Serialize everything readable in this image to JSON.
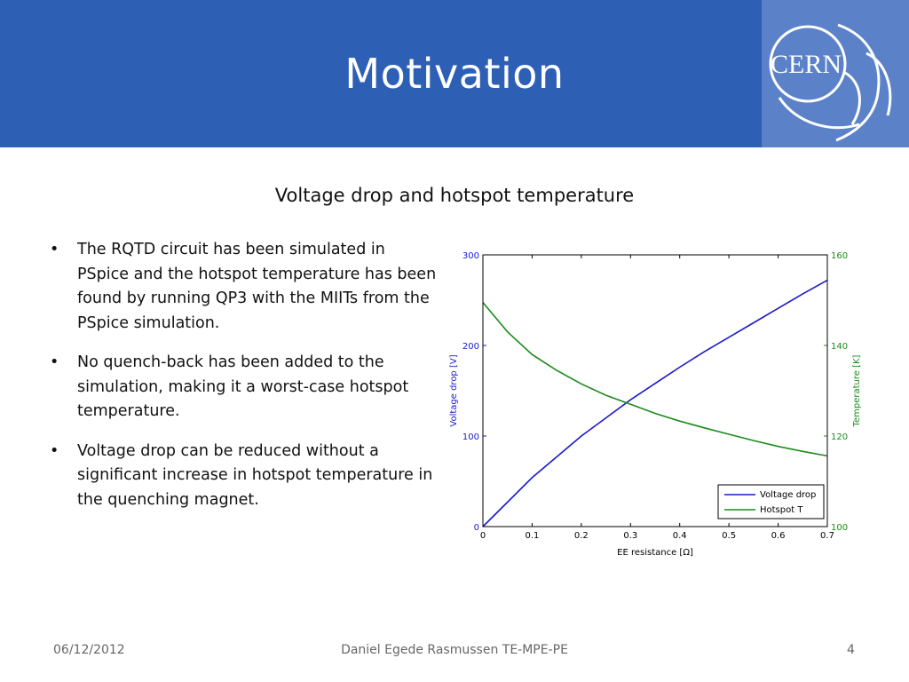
{
  "slide": {
    "title": "Motivation",
    "subtitle": "Voltage drop and hotspot temperature",
    "logo_text": "CERN",
    "bullets": [
      "The RQTD circuit has been simulated in PSpice and the hotspot temperature has been found by running QP3 with the MIITs from the PSpice simulation.",
      "No quench-back has been added to the simulation, making it a worst-case hotspot temperature.",
      "Voltage drop can be reduced without a significant increase in hotspot temperature in the quenching magnet."
    ],
    "footer": {
      "date": "06/12/2012",
      "author": "Daniel Egede Rasmussen TE-MPE-PE",
      "page": "4"
    }
  },
  "colors": {
    "header_bg": "#2d5fb5",
    "voltage_series": "#1a1acc",
    "temperature_series": "#1a8c1a"
  },
  "chart_data": {
    "type": "line",
    "xlabel": "EE resistance [Ω]",
    "ylabel_left": "Voltage drop [V]",
    "ylabel_right": "Temperature [K]",
    "xlim": [
      0,
      0.7
    ],
    "ylim_left": [
      0,
      300
    ],
    "ylim_right": [
      100,
      160
    ],
    "x_ticks": [
      "0",
      "0.1",
      "0.2",
      "0.3",
      "0.4",
      "0.5",
      "0.6",
      "0.7"
    ],
    "y_ticks_left": [
      "0",
      "100",
      "200",
      "300"
    ],
    "y_ticks_right": [
      "100",
      "120",
      "140",
      "160"
    ],
    "legend_position": "bottom-right",
    "grid": false,
    "series": [
      {
        "name": "Voltage drop",
        "axis": "left",
        "x": [
          0,
          0.05,
          0.1,
          0.15,
          0.2,
          0.25,
          0.3,
          0.35,
          0.4,
          0.45,
          0.5,
          0.55,
          0.6,
          0.65,
          0.7
        ],
        "y": [
          0,
          27,
          54,
          77,
          100,
          120,
          140,
          158,
          176,
          193,
          209,
          225,
          241,
          257,
          272
        ]
      },
      {
        "name": "Hotspot T",
        "axis": "right",
        "x": [
          0,
          0.05,
          0.1,
          0.15,
          0.2,
          0.25,
          0.3,
          0.35,
          0.4,
          0.45,
          0.5,
          0.55,
          0.6,
          0.65,
          0.7
        ],
        "y": [
          149.5,
          143,
          138,
          134.5,
          131.5,
          129,
          127,
          125,
          123.3,
          121.8,
          120.4,
          119,
          117.7,
          116.6,
          115.6
        ]
      }
    ]
  }
}
